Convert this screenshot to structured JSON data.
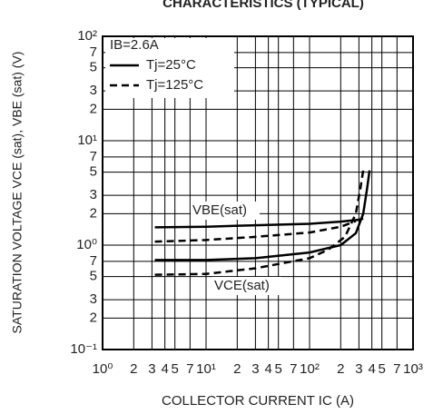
{
  "chart_data": {
    "type": "line",
    "title": "CHARACTERISTICS (TYPICAL)",
    "x_label": "COLLECTOR CURRENT   IC (A)",
    "y_label": "SATURATION VOLTAGE   VCE (sat), VBE (sat) (V)",
    "log_x": true,
    "log_y": true,
    "grid": true,
    "color": "#000000",
    "xlim": [
      1,
      1000
    ],
    "ylim": [
      0.1,
      100
    ],
    "xticks": [
      {
        "value": 1,
        "label": "10⁰"
      },
      2,
      3,
      4,
      5,
      7,
      {
        "value": 10,
        "label": "10¹"
      },
      {
        "value": 20,
        "label": "2"
      },
      {
        "value": 30,
        "label": "3"
      },
      {
        "value": 40,
        "label": "4"
      },
      {
        "value": 50,
        "label": "5"
      },
      {
        "value": 70,
        "label": "7"
      },
      {
        "value": 100,
        "label": "10²"
      },
      {
        "value": 200,
        "label": "2"
      },
      {
        "value": 300,
        "label": "3"
      },
      {
        "value": 400,
        "label": "4"
      },
      {
        "value": 500,
        "label": "5"
      },
      {
        "value": 700,
        "label": "7"
      },
      {
        "value": 1000,
        "label": "10³"
      }
    ],
    "yticks": [
      {
        "value": 0.1,
        "label": "10⁻¹"
      },
      {
        "value": 0.2,
        "label": "2"
      },
      {
        "value": 0.3,
        "label": "3"
      },
      {
        "value": 0.5,
        "label": "5"
      },
      {
        "value": 0.7,
        "label": "7"
      },
      {
        "value": 1,
        "label": "10⁰"
      },
      2,
      3,
      5,
      7,
      {
        "value": 10,
        "label": "10¹"
      },
      {
        "value": 20,
        "label": "2"
      },
      {
        "value": 30,
        "label": "3"
      },
      {
        "value": 50,
        "label": "5"
      },
      {
        "value": 70,
        "label": "7"
      },
      {
        "value": 100,
        "label": "10²"
      }
    ],
    "legend": {
      "title": "IB=2.6A",
      "position": "upper left",
      "entries": [
        {
          "label": "Tj=25°C",
          "dashed": false
        },
        {
          "label": "Tj=125°C",
          "dashed": true
        }
      ]
    },
    "annotations": [
      "VBE(sat)",
      "VCE(sat)"
    ],
    "series": [
      {
        "dashed": false,
        "x": [
          3.2,
          10,
          30,
          100,
          200,
          300,
          330
        ],
        "values": [
          1.48,
          1.5,
          1.55,
          1.6,
          1.68,
          1.75,
          1.8
        ]
      },
      {
        "dashed": true,
        "x": [
          3.2,
          10,
          30,
          100,
          200,
          280
        ],
        "values": [
          1.08,
          1.12,
          1.2,
          1.32,
          1.5,
          1.7
        ]
      },
      {
        "dashed": false,
        "x": [
          3.2,
          10,
          30,
          100,
          200,
          280,
          330,
          360,
          380
        ],
        "values": [
          0.72,
          0.72,
          0.75,
          0.85,
          1.0,
          1.3,
          2,
          3.5,
          5.2
        ]
      },
      {
        "dashed": true,
        "x": [
          3.2,
          10,
          30,
          100,
          150,
          220,
          280,
          310,
          330
        ],
        "values": [
          0.52,
          0.53,
          0.6,
          0.75,
          0.9,
          1.2,
          2,
          3.5,
          5.2
        ]
      }
    ]
  }
}
